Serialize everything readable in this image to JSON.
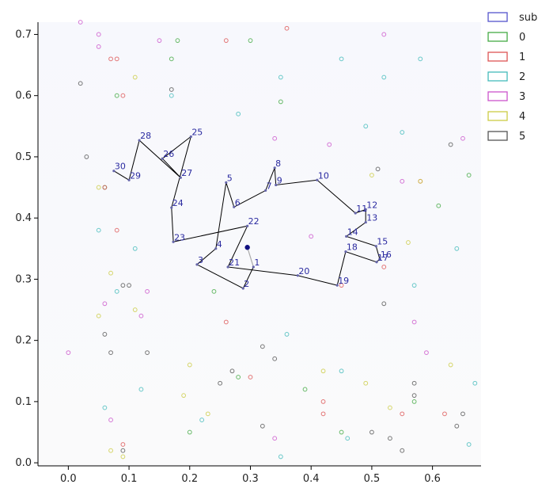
{
  "chart_data": {
    "type": "scatter",
    "xlim": [
      -0.05,
      0.68
    ],
    "ylim": [
      -0.005,
      0.72
    ],
    "x_ticks": [
      "0.0",
      "0.1",
      "0.2",
      "0.3",
      "0.4",
      "0.5",
      "0.6"
    ],
    "x_tick_values": [
      0.0,
      0.1,
      0.2,
      0.3,
      0.4,
      0.5,
      0.6
    ],
    "y_ticks": [
      "0.0",
      "0.1",
      "0.2",
      "0.3",
      "0.4",
      "0.5",
      "0.6",
      "0.7"
    ],
    "y_tick_values": [
      0.0,
      0.1,
      0.2,
      0.3,
      0.4,
      0.5,
      0.6,
      0.7
    ],
    "grid": false,
    "legend_position": "top-right",
    "legend": [
      {
        "label": "sub",
        "color": "#5555cc"
      },
      {
        "label": "0",
        "color": "#44aa44"
      },
      {
        "label": "1",
        "color": "#dd5555"
      },
      {
        "label": "2",
        "color": "#44bbbb"
      },
      {
        "label": "3",
        "color": "#cc55cc"
      },
      {
        "label": "4",
        "color": "#cccc44"
      },
      {
        "label": "5",
        "color": "#555555"
      }
    ],
    "start_point": {
      "x": 0.295,
      "y": 0.352
    },
    "path": [
      {
        "label": "1",
        "x": 0.305,
        "y": 0.32
      },
      {
        "label": "2",
        "x": 0.288,
        "y": 0.285
      },
      {
        "label": "3",
        "x": 0.212,
        "y": 0.324
      },
      {
        "label": "4",
        "x": 0.243,
        "y": 0.35
      },
      {
        "label": "5",
        "x": 0.26,
        "y": 0.458
      },
      {
        "label": "6",
        "x": 0.273,
        "y": 0.418
      },
      {
        "label": "7",
        "x": 0.325,
        "y": 0.445
      },
      {
        "label": "8",
        "x": 0.34,
        "y": 0.482
      },
      {
        "label": "9",
        "x": 0.342,
        "y": 0.454
      },
      {
        "label": "10",
        "x": 0.41,
        "y": 0.462
      },
      {
        "label": "11",
        "x": 0.473,
        "y": 0.408
      },
      {
        "label": "12",
        "x": 0.49,
        "y": 0.414
      },
      {
        "label": "13",
        "x": 0.49,
        "y": 0.393
      },
      {
        "label": "14",
        "x": 0.458,
        "y": 0.37
      },
      {
        "label": "15",
        "x": 0.507,
        "y": 0.354
      },
      {
        "label": "16",
        "x": 0.513,
        "y": 0.333
      },
      {
        "label": "17",
        "x": 0.508,
        "y": 0.328
      },
      {
        "label": "18",
        "x": 0.457,
        "y": 0.345
      },
      {
        "label": "19",
        "x": 0.443,
        "y": 0.29
      },
      {
        "label": "20",
        "x": 0.378,
        "y": 0.306
      },
      {
        "label": "21",
        "x": 0.263,
        "y": 0.32
      },
      {
        "label": "22",
        "x": 0.295,
        "y": 0.387
      },
      {
        "label": "23",
        "x": 0.173,
        "y": 0.361
      },
      {
        "label": "24",
        "x": 0.17,
        "y": 0.417
      },
      {
        "label": "25",
        "x": 0.202,
        "y": 0.533
      },
      {
        "label": "26",
        "x": 0.155,
        "y": 0.497
      },
      {
        "label": "27",
        "x": 0.185,
        "y": 0.466
      },
      {
        "label": "28",
        "x": 0.117,
        "y": 0.527
      },
      {
        "label": "29",
        "x": 0.1,
        "y": 0.462
      },
      {
        "label": "30",
        "x": 0.075,
        "y": 0.477
      }
    ],
    "scatter_groups": [
      {
        "name": "0",
        "color": "#44aa44",
        "points": [
          [
            0.18,
            0.69
          ],
          [
            0.17,
            0.66
          ],
          [
            0.3,
            0.69
          ],
          [
            0.35,
            0.59
          ],
          [
            0.06,
            0.45
          ],
          [
            0.24,
            0.28
          ],
          [
            0.39,
            0.12
          ],
          [
            0.57,
            0.1
          ],
          [
            0.45,
            0.05
          ],
          [
            0.66,
            0.47
          ],
          [
            0.61,
            0.42
          ],
          [
            0.28,
            0.14
          ],
          [
            0.2,
            0.05
          ],
          [
            0.08,
            0.6
          ]
        ]
      },
      {
        "name": "1",
        "color": "#dd5555",
        "points": [
          [
            0.07,
            0.66
          ],
          [
            0.08,
            0.66
          ],
          [
            0.09,
            0.6
          ],
          [
            0.06,
            0.45
          ],
          [
            0.08,
            0.38
          ],
          [
            0.36,
            0.71
          ],
          [
            0.26,
            0.69
          ],
          [
            0.58,
            0.46
          ],
          [
            0.42,
            0.1
          ],
          [
            0.42,
            0.08
          ],
          [
            0.55,
            0.08
          ],
          [
            0.62,
            0.08
          ],
          [
            0.26,
            0.23
          ],
          [
            0.3,
            0.14
          ],
          [
            0.09,
            0.03
          ],
          [
            0.52,
            0.32
          ],
          [
            0.45,
            0.29
          ]
        ]
      },
      {
        "name": "2",
        "color": "#44bbbb",
        "points": [
          [
            0.17,
            0.6
          ],
          [
            0.28,
            0.57
          ],
          [
            0.35,
            0.63
          ],
          [
            0.49,
            0.55
          ],
          [
            0.55,
            0.54
          ],
          [
            0.52,
            0.63
          ],
          [
            0.45,
            0.66
          ],
          [
            0.58,
            0.66
          ],
          [
            0.05,
            0.38
          ],
          [
            0.11,
            0.35
          ],
          [
            0.08,
            0.28
          ],
          [
            0.36,
            0.21
          ],
          [
            0.45,
            0.15
          ],
          [
            0.64,
            0.35
          ],
          [
            0.57,
            0.29
          ],
          [
            0.67,
            0.13
          ],
          [
            0.66,
            0.03
          ],
          [
            0.35,
            0.01
          ],
          [
            0.46,
            0.04
          ],
          [
            0.22,
            0.07
          ],
          [
            0.06,
            0.09
          ],
          [
            0.12,
            0.12
          ]
        ]
      },
      {
        "name": "3",
        "color": "#cc55cc",
        "points": [
          [
            0.02,
            0.72
          ],
          [
            0.05,
            0.7
          ],
          [
            0.05,
            0.68
          ],
          [
            0.15,
            0.69
          ],
          [
            0.34,
            0.53
          ],
          [
            0.43,
            0.52
          ],
          [
            0.52,
            0.7
          ],
          [
            0.55,
            0.46
          ],
          [
            0.4,
            0.37
          ],
          [
            0.13,
            0.28
          ],
          [
            0.12,
            0.24
          ],
          [
            0.06,
            0.26
          ],
          [
            0.0,
            0.18
          ],
          [
            0.07,
            0.07
          ],
          [
            0.34,
            0.04
          ],
          [
            0.59,
            0.18
          ],
          [
            0.57,
            0.23
          ],
          [
            0.65,
            0.53
          ]
        ]
      },
      {
        "name": "4",
        "color": "#cccc44",
        "points": [
          [
            0.11,
            0.63
          ],
          [
            0.05,
            0.45
          ],
          [
            0.07,
            0.31
          ],
          [
            0.11,
            0.25
          ],
          [
            0.05,
            0.24
          ],
          [
            0.2,
            0.16
          ],
          [
            0.19,
            0.11
          ],
          [
            0.23,
            0.08
          ],
          [
            0.42,
            0.15
          ],
          [
            0.49,
            0.13
          ],
          [
            0.53,
            0.09
          ],
          [
            0.58,
            0.46
          ],
          [
            0.5,
            0.47
          ],
          [
            0.56,
            0.36
          ],
          [
            0.63,
            0.16
          ],
          [
            0.07,
            0.02
          ],
          [
            0.09,
            0.01
          ]
        ]
      },
      {
        "name": "5",
        "color": "#555555",
        "points": [
          [
            0.02,
            0.62
          ],
          [
            0.17,
            0.61
          ],
          [
            0.03,
            0.5
          ],
          [
            0.09,
            0.29
          ],
          [
            0.1,
            0.29
          ],
          [
            0.06,
            0.21
          ],
          [
            0.07,
            0.18
          ],
          [
            0.13,
            0.18
          ],
          [
            0.32,
            0.19
          ],
          [
            0.34,
            0.17
          ],
          [
            0.25,
            0.13
          ],
          [
            0.27,
            0.15
          ],
          [
            0.32,
            0.06
          ],
          [
            0.5,
            0.05
          ],
          [
            0.53,
            0.04
          ],
          [
            0.55,
            0.02
          ],
          [
            0.57,
            0.11
          ],
          [
            0.57,
            0.13
          ],
          [
            0.64,
            0.06
          ],
          [
            0.65,
            0.08
          ],
          [
            0.63,
            0.52
          ],
          [
            0.51,
            0.48
          ],
          [
            0.52,
            0.26
          ],
          [
            0.09,
            0.02
          ]
        ]
      }
    ]
  }
}
